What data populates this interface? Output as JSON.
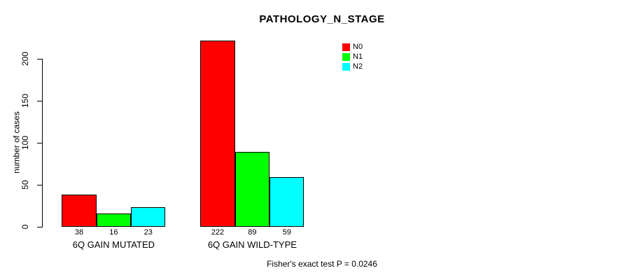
{
  "chart_data": {
    "type": "bar",
    "title": "PATHOLOGY_N_STAGE",
    "xlabel": "",
    "ylabel": "number of cases",
    "categories": [
      "6Q GAIN MUTATED",
      "6Q GAIN WILD-TYPE"
    ],
    "series": [
      {
        "name": "N0",
        "color": "#ff0000",
        "values": [
          38,
          222
        ]
      },
      {
        "name": "N1",
        "color": "#00ff00",
        "values": [
          16,
          89
        ]
      },
      {
        "name": "N2",
        "color": "#00ffff",
        "values": [
          23,
          59
        ]
      }
    ],
    "bar_value_labels": [
      [
        "38",
        "16",
        "23"
      ],
      [
        "222",
        "89",
        "59"
      ]
    ],
    "yticks": [
      0,
      50,
      100,
      150,
      200
    ],
    "ylim": [
      0,
      222
    ],
    "grid": false,
    "legend_position": "top-right",
    "annotation": "Fisher's exact test P = 0.0246"
  }
}
